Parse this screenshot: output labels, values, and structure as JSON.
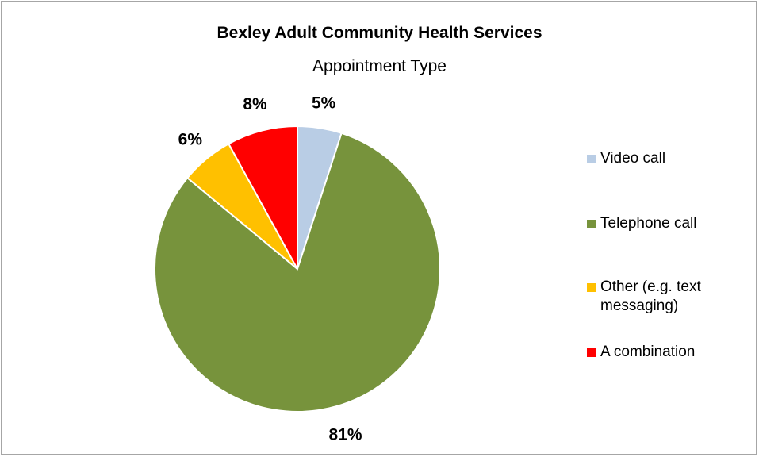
{
  "chart_data": {
    "type": "pie",
    "title": "Bexley Adult Community Health Services",
    "subtitle": "Appointment Type",
    "categories": [
      "Video call",
      "Telephone call",
      "Other (e.g. text messaging)",
      "A combination"
    ],
    "values": [
      5,
      81,
      6,
      8
    ],
    "data_labels": [
      "5%",
      "81%",
      "6%",
      "8%"
    ],
    "colors": [
      "#b9cde5",
      "#77933c",
      "#ffc000",
      "#ff0000"
    ],
    "legend_position": "right"
  }
}
